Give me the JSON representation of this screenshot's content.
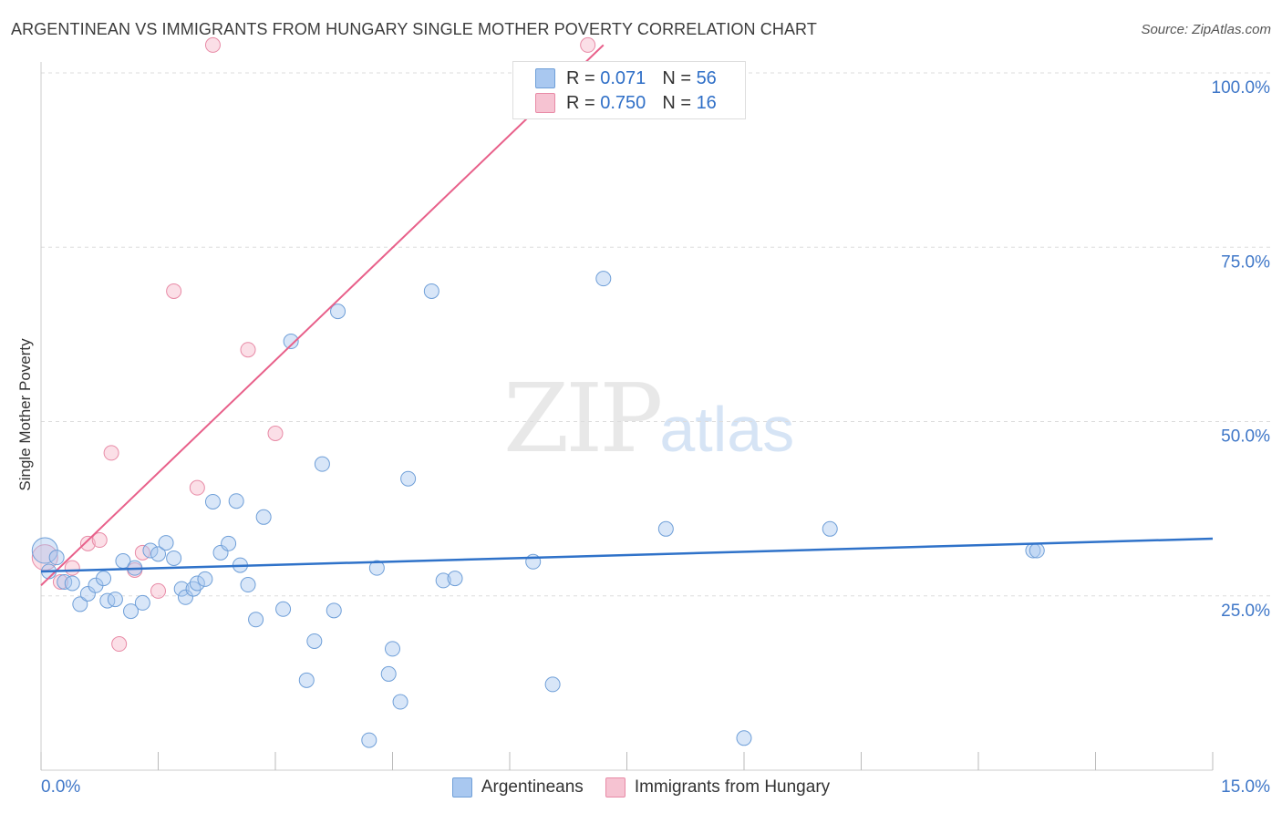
{
  "header": {
    "title": "ARGENTINEAN VS IMMIGRANTS FROM HUNGARY SINGLE MOTHER POVERTY CORRELATION CHART",
    "source": "Source: ZipAtlas.com"
  },
  "watermark": {
    "zip": "ZIP",
    "atlas": "atlas"
  },
  "legend_top": [
    {
      "r_label": "R =",
      "r_value": "0.071",
      "n_label": "N =",
      "n_value": "56"
    },
    {
      "r_label": "R =",
      "r_value": "0.750",
      "n_label": "N =",
      "n_value": "16"
    }
  ],
  "colors": {
    "blue_fill": "#a9c8f0",
    "blue_stroke": "#6f9fd8",
    "blue_line": "#2f72c9",
    "pink_fill": "#f6b8c9",
    "pink_stroke": "#e88aa6",
    "pink_line": "#e8608a",
    "grid": "#dddddd",
    "tick_label": "#3f77c8"
  },
  "chart_data": {
    "type": "scatter",
    "title": "ARGENTINEAN VS IMMIGRANTS FROM HUNGARY SINGLE MOTHER POVERTY CORRELATION CHART",
    "xlabel": "",
    "ylabel": "Single Mother Poverty",
    "xlim": [
      0,
      15
    ],
    "ylim": [
      0,
      100
    ],
    "x_tick_labels": [
      "0.0%",
      "15.0%"
    ],
    "y_tick_labels": [
      "25.0%",
      "50.0%",
      "75.0%",
      "100.0%"
    ],
    "y_ticks": [
      25,
      50,
      75,
      100
    ],
    "grid": true,
    "legend": "bottom",
    "series": [
      {
        "name": "Argentineans",
        "r": 0.071,
        "n": 56,
        "trend": {
          "x": [
            0,
            15
          ],
          "y": [
            28.5,
            33.2
          ]
        },
        "points": [
          [
            0.05,
            31.5
          ],
          [
            0.1,
            28.5
          ],
          [
            0.2,
            30.5
          ],
          [
            0.3,
            27.0
          ],
          [
            0.4,
            26.8
          ],
          [
            0.5,
            23.8
          ],
          [
            0.6,
            25.3
          ],
          [
            0.7,
            26.5
          ],
          [
            0.8,
            27.5
          ],
          [
            0.85,
            24.3
          ],
          [
            0.95,
            24.5
          ],
          [
            1.05,
            30.0
          ],
          [
            1.15,
            22.8
          ],
          [
            1.2,
            29.0
          ],
          [
            1.3,
            24.0
          ],
          [
            1.4,
            31.5
          ],
          [
            1.5,
            31.0
          ],
          [
            1.6,
            32.6
          ],
          [
            1.7,
            30.4
          ],
          [
            1.8,
            26.0
          ],
          [
            1.85,
            24.8
          ],
          [
            1.95,
            26.0
          ],
          [
            2.0,
            26.8
          ],
          [
            2.1,
            27.4
          ],
          [
            2.2,
            38.5
          ],
          [
            2.3,
            31.2
          ],
          [
            2.4,
            32.5
          ],
          [
            2.5,
            38.6
          ],
          [
            2.55,
            29.4
          ],
          [
            2.65,
            26.6
          ],
          [
            2.75,
            21.6
          ],
          [
            2.85,
            36.3
          ],
          [
            3.1,
            23.1
          ],
          [
            3.2,
            61.5
          ],
          [
            3.4,
            12.9
          ],
          [
            3.5,
            18.5
          ],
          [
            3.6,
            43.9
          ],
          [
            3.75,
            22.9
          ],
          [
            3.8,
            65.8
          ],
          [
            4.2,
            4.3
          ],
          [
            4.3,
            29.0
          ],
          [
            4.45,
            13.8
          ],
          [
            4.5,
            17.4
          ],
          [
            4.6,
            9.8
          ],
          [
            4.7,
            41.8
          ],
          [
            5.0,
            68.7
          ],
          [
            5.15,
            27.2
          ],
          [
            5.3,
            27.5
          ],
          [
            6.3,
            29.9
          ],
          [
            6.55,
            12.3
          ],
          [
            7.2,
            70.5
          ],
          [
            8.0,
            34.6
          ],
          [
            9.0,
            4.6
          ],
          [
            10.1,
            34.6
          ],
          [
            12.7,
            31.5
          ],
          [
            12.75,
            31.5
          ]
        ]
      },
      {
        "name": "Immigrants from Hungary",
        "r": 0.75,
        "n": 16,
        "trend": {
          "x": [
            0,
            7.2
          ],
          "y": [
            26.5,
            104
          ]
        },
        "points": [
          [
            0.05,
            30.5
          ],
          [
            0.25,
            27.0
          ],
          [
            0.4,
            29.0
          ],
          [
            0.6,
            32.5
          ],
          [
            0.75,
            33.0
          ],
          [
            0.9,
            45.5
          ],
          [
            1.0,
            18.1
          ],
          [
            1.2,
            28.7
          ],
          [
            1.3,
            31.2
          ],
          [
            1.5,
            25.7
          ],
          [
            1.7,
            68.7
          ],
          [
            2.0,
            40.5
          ],
          [
            2.2,
            104.0
          ],
          [
            2.65,
            60.3
          ],
          [
            3.0,
            48.3
          ],
          [
            7.0,
            104.0
          ]
        ]
      }
    ]
  }
}
